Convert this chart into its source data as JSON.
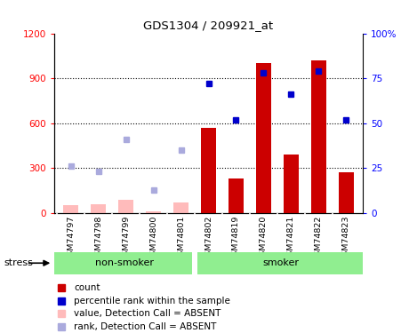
{
  "title": "GDS1304 / 209921_at",
  "samples": [
    "GSM74797",
    "GSM74798",
    "GSM74799",
    "GSM74800",
    "GSM74801",
    "GSM74802",
    "GSM74819",
    "GSM74820",
    "GSM74821",
    "GSM74822",
    "GSM74823"
  ],
  "groups": {
    "non-smoker": [
      0,
      1,
      2,
      3,
      4
    ],
    "smoker": [
      5,
      6,
      7,
      8,
      9,
      10
    ]
  },
  "count_values": [
    null,
    null,
    null,
    null,
    null,
    570,
    230,
    1000,
    390,
    1020,
    270
  ],
  "count_absent": [
    55,
    60,
    90,
    10,
    70,
    null,
    null,
    null,
    null,
    null,
    null
  ],
  "rank_present": [
    null,
    null,
    null,
    null,
    null,
    72,
    52,
    78,
    66,
    79,
    52
  ],
  "rank_absent": [
    26,
    23,
    41,
    13,
    35,
    null,
    null,
    null,
    null,
    null,
    null
  ],
  "ylim_left": [
    0,
    1200
  ],
  "ylim_right": [
    0,
    100
  ],
  "yticks_left": [
    0,
    300,
    600,
    900,
    1200
  ],
  "yticks_right": [
    0,
    25,
    50,
    75,
    100
  ],
  "yticklabels_right": [
    "0",
    "25",
    "50",
    "75",
    "100%"
  ],
  "bar_color": "#CC0000",
  "bar_absent_color": "#FFBBBB",
  "rank_present_color": "#0000CC",
  "rank_absent_color": "#AAAADD",
  "grid_color": "black",
  "bg_color": "#FFFFFF",
  "label_bg": "#CCCCCC",
  "group_bg": "#90EE90",
  "legend_items": [
    {
      "color": "#CC0000",
      "label": "count"
    },
    {
      "color": "#0000CC",
      "label": "percentile rank within the sample"
    },
    {
      "color": "#FFBBBB",
      "label": "value, Detection Call = ABSENT"
    },
    {
      "color": "#AAAADD",
      "label": "rank, Detection Call = ABSENT"
    }
  ],
  "stress_label": "stress",
  "nonsmoker_label": "non-smoker",
  "smoker_label": "smoker"
}
